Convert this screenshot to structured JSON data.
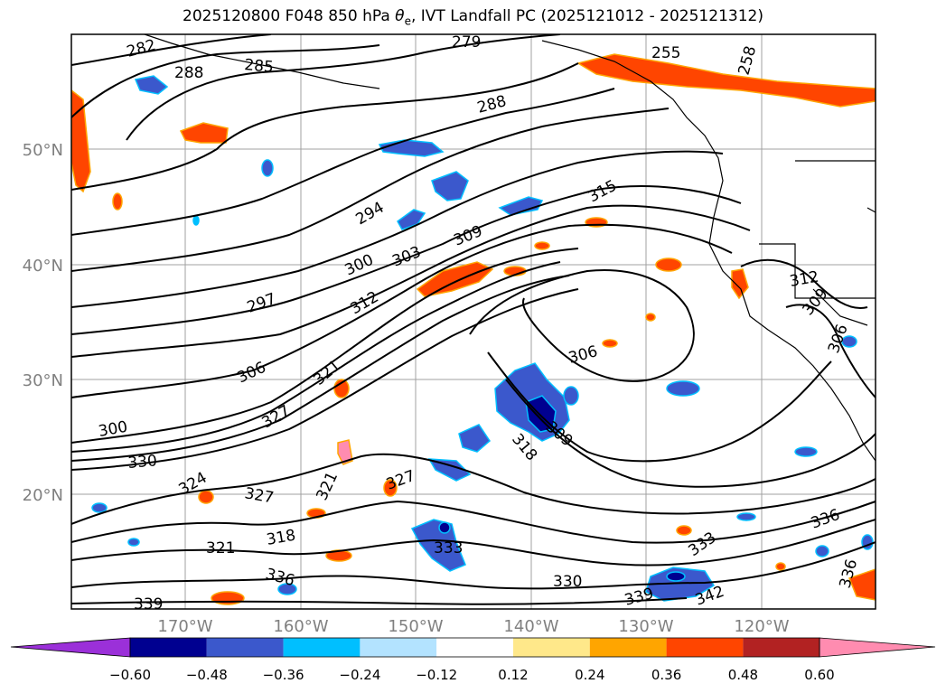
{
  "title": {
    "prefix": "2025120800 F048 850 hPa ",
    "symbol": "θ",
    "symbol_sub": "e",
    "suffix": ", IVT Landfall PC (2025121012 - 2025121312)"
  },
  "map": {
    "lat_labels": [
      "50°N",
      "40°N",
      "30°N",
      "20°N"
    ],
    "lon_labels": [
      "170°W",
      "160°W",
      "150°W",
      "140°W",
      "130°W",
      "120°W"
    ],
    "contour_field": "850 hPa theta-e (K)",
    "contour_labels": [
      "282",
      "288",
      "285",
      "279",
      "255",
      "258",
      "288",
      "315",
      "294",
      "309",
      "303",
      "300",
      "297",
      "312",
      "309",
      "306",
      "306",
      "309",
      "321",
      "327",
      "300",
      "318",
      "330",
      "324",
      "321",
      "327",
      "327",
      "318",
      "321",
      "333",
      "336",
      "330",
      "339",
      "333",
      "336",
      "339",
      "342",
      "336",
      "312",
      "306"
    ],
    "shading_field": "IVT Landfall PC"
  },
  "colorbar": {
    "ticks": [
      "−0.60",
      "−0.48",
      "−0.36",
      "−0.24",
      "−0.12",
      "0.12",
      "0.24",
      "0.36",
      "0.48",
      "0.60"
    ],
    "colors": [
      "#9b30d9",
      "#000090",
      "#3b58cc",
      "#00bfff",
      "#b3e3ff",
      "#ffffff",
      "#ffe88a",
      "#ffa500",
      "#ff4500",
      "#b22222",
      "#ff8cb0",
      "#ff8cb0"
    ],
    "extend": "both"
  },
  "colors": {
    "grid": "#a0a0a0",
    "coast": "#000000",
    "contour": "#000000",
    "tick_label": "#808080"
  }
}
